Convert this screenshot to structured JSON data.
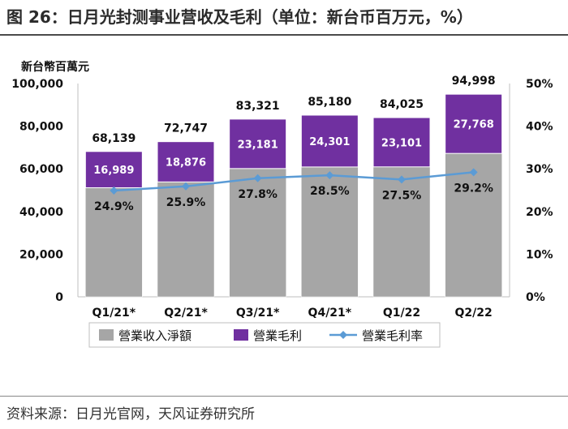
{
  "figure_title": "图 26：日月光封测事业营收及毛利（单位：新台币百万元，%）",
  "unit_label": "新台幣百萬元",
  "source": "资料来源：日月光官网，天风证券研究所",
  "colors": {
    "revenue_bar": "#a6a6a6",
    "gross_profit_bar": "#7030a0",
    "margin_line": "#5b9bd5",
    "axis_text": "#111111"
  },
  "chart_data": {
    "type": "bar",
    "stacked": true,
    "categories": [
      "Q1/21*",
      "Q2/21*",
      "Q3/21*",
      "Q4/21*",
      "Q1/22",
      "Q2/22"
    ],
    "series": [
      {
        "name": "營業收入淨額",
        "kind": "bar",
        "values": [
          68139,
          72747,
          83321,
          85180,
          84025,
          94998
        ],
        "labels": [
          "68,139",
          "72,747",
          "83,321",
          "85,180",
          "84,025",
          "94,998"
        ]
      },
      {
        "name": "營業毛利",
        "kind": "bar",
        "values": [
          16989,
          18876,
          23181,
          24301,
          23101,
          27768
        ],
        "labels": [
          "16,989",
          "18,876",
          "23,181",
          "24,301",
          "23,101",
          "27,768"
        ]
      },
      {
        "name": "營業毛利率",
        "kind": "line",
        "axis": "right",
        "values": [
          24.9,
          25.9,
          27.8,
          28.5,
          27.5,
          29.2
        ],
        "labels": [
          "24.9%",
          "25.9%",
          "27.8%",
          "28.5%",
          "27.5%",
          "29.2%"
        ]
      }
    ],
    "y_left": {
      "range": [
        0,
        100000
      ],
      "ticks": [
        0,
        20000,
        40000,
        60000,
        80000,
        100000
      ],
      "tick_labels": [
        "0",
        "20,000",
        "40,000",
        "60,000",
        "80,000",
        "100,000"
      ]
    },
    "y_right": {
      "range": [
        0,
        50
      ],
      "ticks": [
        0,
        10,
        20,
        30,
        40,
        50
      ],
      "tick_labels": [
        "0%",
        "10%",
        "20%",
        "30%",
        "40%",
        "50%"
      ]
    },
    "grid": false,
    "legend_position": "bottom"
  }
}
